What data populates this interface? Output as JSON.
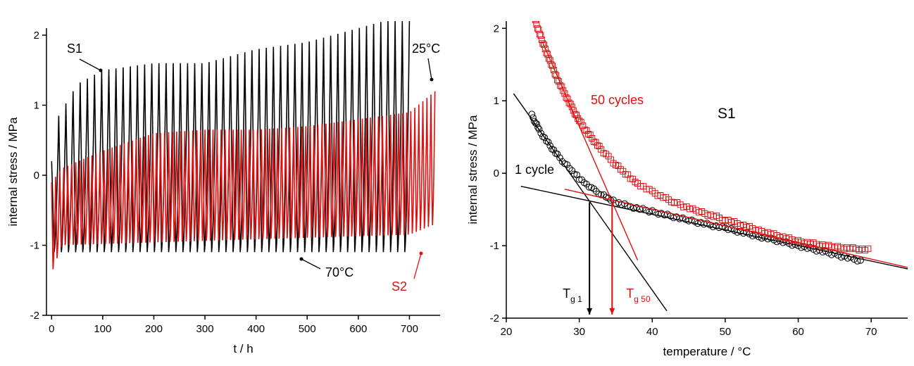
{
  "colors": {
    "s1": "#000000",
    "s2": "#e01010",
    "axis": "#000000"
  },
  "chart_data": [
    {
      "type": "line",
      "xlabel": "t / h",
      "ylabel": "internal stress / MPa",
      "xlim": [
        -10,
        760
      ],
      "ylim": [
        -2,
        2.1
      ],
      "xticks": [
        0,
        100,
        200,
        300,
        400,
        500,
        600,
        700
      ],
      "yticks": [
        -2,
        -1,
        0,
        1,
        2
      ],
      "grid": false,
      "annotations": [
        {
          "text": "S1",
          "color": "#000000",
          "x": 90,
          "y": 1.5
        },
        {
          "text": "25°C",
          "color": "#000000",
          "x": 745,
          "y": 1.3
        },
        {
          "text": "70°C",
          "color": "#000000",
          "x": 495,
          "y": -1.3
        },
        {
          "text": "S2",
          "color": "#e01010",
          "x": 735,
          "y": -0.95
        }
      ],
      "series": [
        {
          "color": "#000000",
          "x_range": [
            0,
            700
          ],
          "cycles": 50,
          "max": [
            [
              0,
              0.2
            ],
            [
              10,
              0.8
            ],
            [
              50,
              1.3
            ],
            [
              100,
              1.5
            ],
            [
              200,
              1.6
            ],
            [
              300,
              1.6
            ],
            [
              400,
              1.8
            ],
            [
              500,
              1.9
            ],
            [
              600,
              2.1
            ],
            [
              650,
              2.2
            ],
            [
              700,
              2.2
            ]
          ],
          "min": [
            [
              0,
              -1.1
            ],
            [
              700,
              -1.1
            ]
          ]
        },
        {
          "color": "#e01010",
          "x_range": [
            0,
            750
          ],
          "cycles": 95,
          "max": [
            [
              0,
              -0.1
            ],
            [
              20,
              0.1
            ],
            [
              100,
              0.35
            ],
            [
              200,
              0.6
            ],
            [
              300,
              0.65
            ],
            [
              400,
              0.65
            ],
            [
              500,
              0.7
            ],
            [
              600,
              0.8
            ],
            [
              700,
              0.9
            ],
            [
              750,
              1.2
            ]
          ],
          "min": [
            [
              0,
              -1.4
            ],
            [
              20,
              -1.0
            ],
            [
              700,
              -0.85
            ],
            [
              750,
              -0.7
            ]
          ]
        }
      ]
    },
    {
      "type": "scatter",
      "title": "S1",
      "xlabel": "temperature / °C",
      "ylabel": "internal stress / MPa",
      "xlim": [
        20,
        75
      ],
      "ylim": [
        -2,
        2.1
      ],
      "xticks": [
        20,
        30,
        40,
        50,
        60,
        70
      ],
      "yticks": [
        -2,
        -1,
        0,
        1,
        2
      ],
      "grid": false,
      "series": [
        {
          "name": "1 cycle",
          "marker": "circle",
          "color": "#000000",
          "points": [
            [
              23.5,
              0.8
            ],
            [
              24,
              0.7
            ],
            [
              24.5,
              0.6
            ],
            [
              25,
              0.52
            ],
            [
              26,
              0.38
            ],
            [
              27,
              0.25
            ],
            [
              28,
              0.14
            ],
            [
              29,
              0.03
            ],
            [
              30,
              -0.07
            ],
            [
              31,
              -0.15
            ],
            [
              32,
              -0.23
            ],
            [
              33,
              -0.29
            ],
            [
              34,
              -0.35
            ],
            [
              35,
              -0.4
            ],
            [
              37,
              -0.46
            ],
            [
              40,
              -0.53
            ],
            [
              45,
              -0.65
            ],
            [
              50,
              -0.76
            ],
            [
              55,
              -0.88
            ],
            [
              60,
              -1.0
            ],
            [
              65,
              -1.12
            ],
            [
              69,
              -1.22
            ]
          ]
        },
        {
          "name": "50 cycles",
          "marker": "square",
          "color": "#e01010",
          "points": [
            [
              24,
              2.1
            ],
            [
              25,
              1.8
            ],
            [
              26,
              1.55
            ],
            [
              27,
              1.3
            ],
            [
              28,
              1.1
            ],
            [
              29,
              0.9
            ],
            [
              30,
              0.73
            ],
            [
              31,
              0.58
            ],
            [
              32,
              0.45
            ],
            [
              33,
              0.33
            ],
            [
              34,
              0.22
            ],
            [
              35,
              0.12
            ],
            [
              36,
              0.02
            ],
            [
              37,
              -0.06
            ],
            [
              38,
              -0.14
            ],
            [
              40,
              -0.26
            ],
            [
              43,
              -0.4
            ],
            [
              46,
              -0.52
            ],
            [
              50,
              -0.64
            ],
            [
              55,
              -0.8
            ],
            [
              60,
              -0.94
            ],
            [
              65,
              -1.02
            ],
            [
              70,
              -1.06
            ]
          ]
        }
      ],
      "fit_lines": [
        {
          "color": "#000000",
          "from": [
            21,
            1.1
          ],
          "to": [
            42,
            -1.9
          ]
        },
        {
          "color": "#000000",
          "from": [
            22,
            -0.18
          ],
          "to": [
            75,
            -1.32
          ]
        },
        {
          "color": "#e01010",
          "from": [
            25,
            1.8
          ],
          "to": [
            38,
            -1.2
          ]
        },
        {
          "color": "#e01010",
          "from": [
            28,
            -0.22
          ],
          "to": [
            75,
            -1.3
          ]
        }
      ],
      "annotations": [
        {
          "text": "50 cycles",
          "color": "#e01010",
          "x": 32,
          "y": 1.0
        },
        {
          "text": "S1",
          "color": "#000000",
          "x": 48,
          "y": 0.85
        },
        {
          "text": "1 cycle",
          "color": "#000000",
          "x": 23,
          "y": 0.0
        }
      ],
      "markers": [
        {
          "label": "T",
          "subscript": "g 1",
          "x": 31.4,
          "color": "#000000"
        },
        {
          "label": "T",
          "subscript": "g 50",
          "x": 34.5,
          "color": "#e01010"
        }
      ]
    }
  ]
}
